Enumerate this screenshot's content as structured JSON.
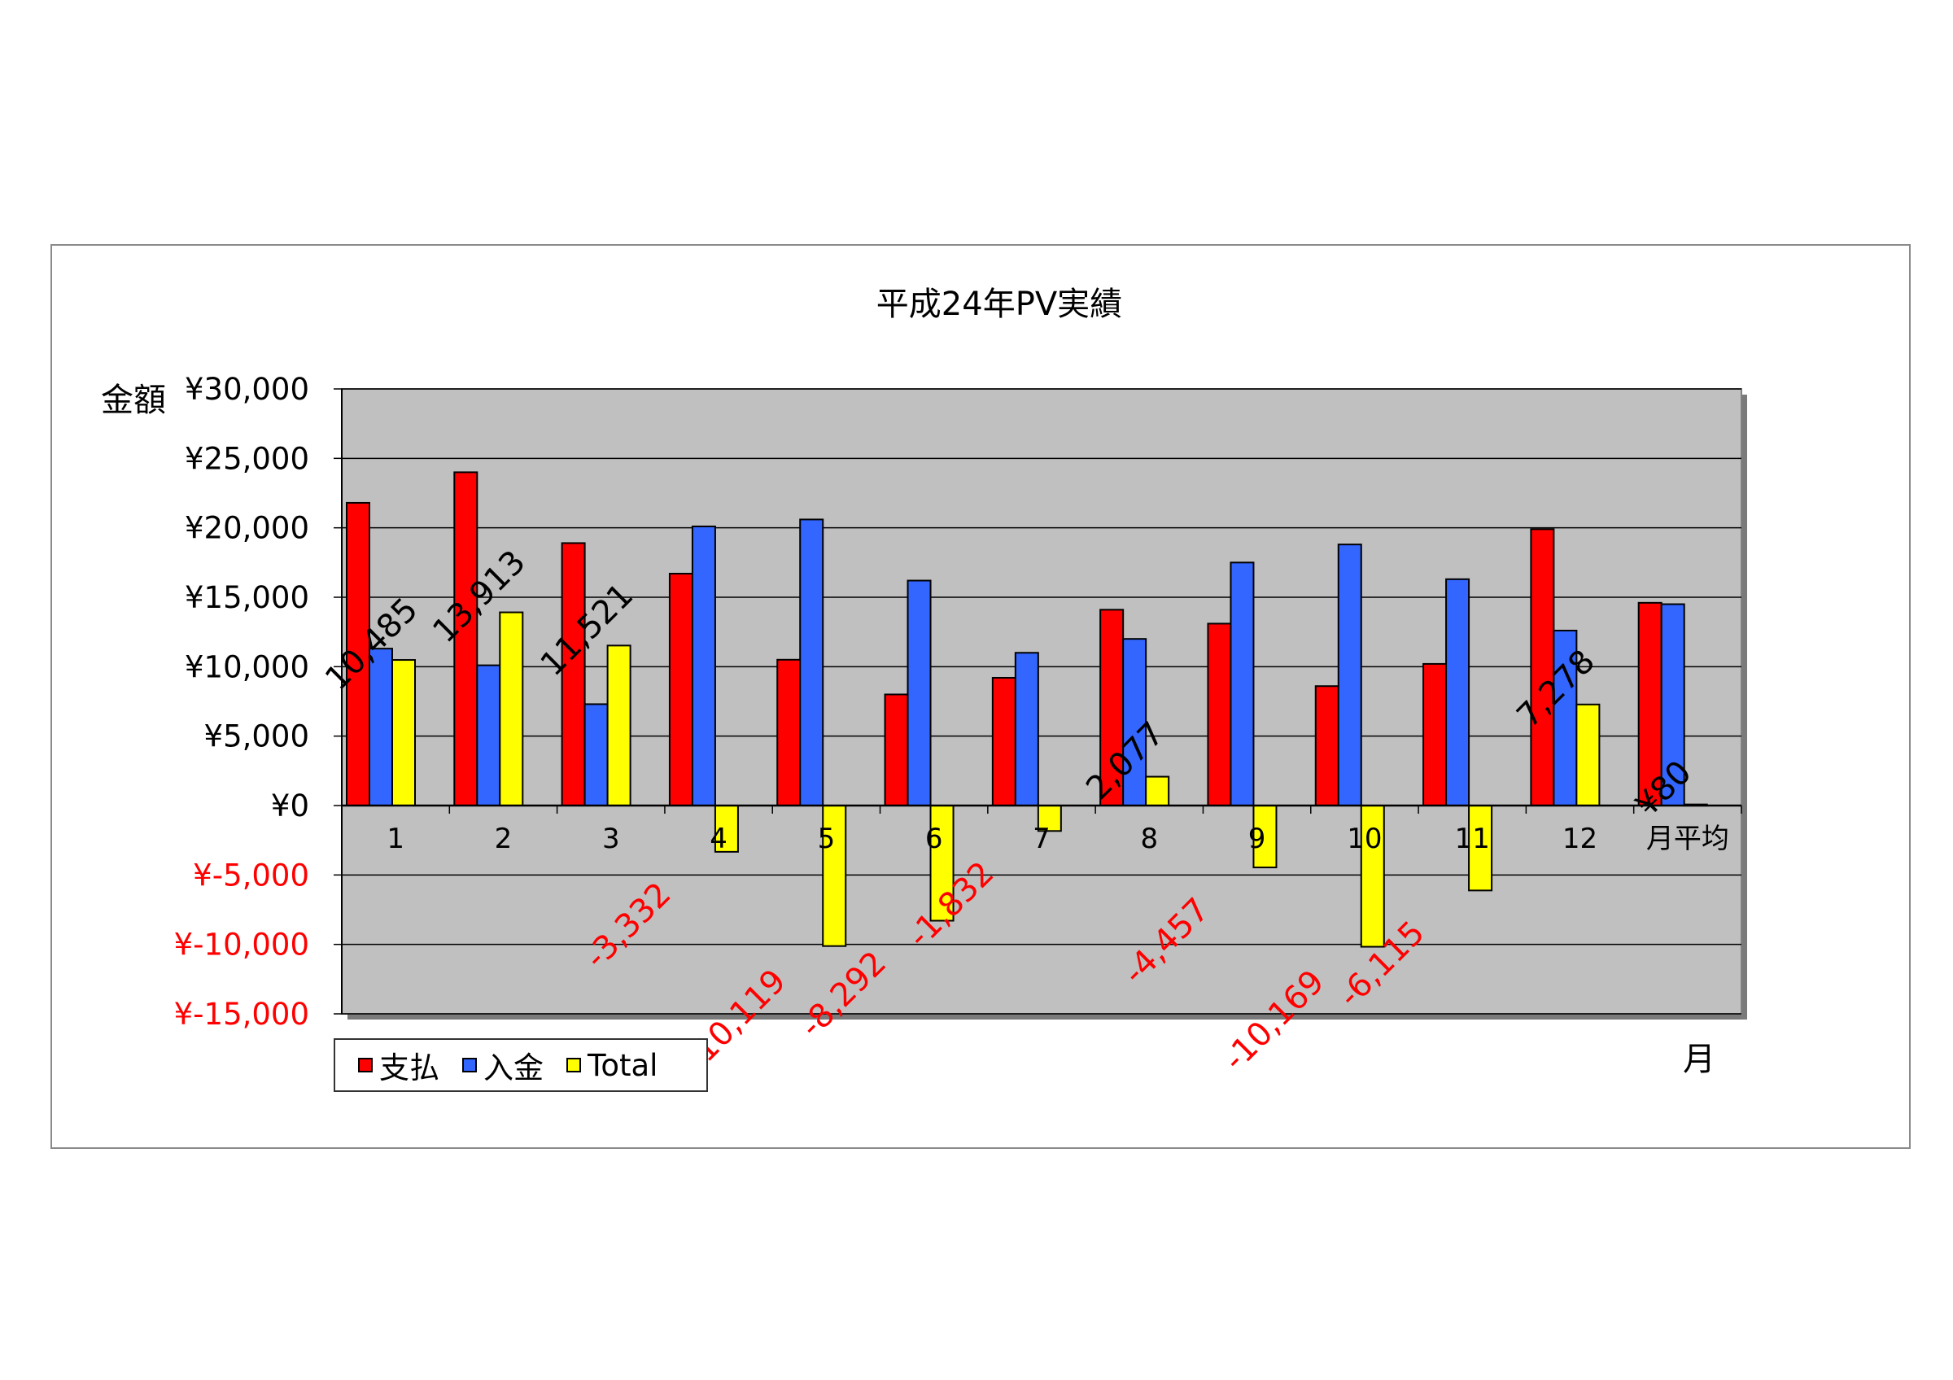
{
  "chart_data": {
    "type": "bar",
    "title": "平成24年PV実績",
    "ylabel": "金額",
    "xlabel": "月",
    "categories": [
      "1",
      "2",
      "3",
      "4",
      "5",
      "6",
      "7",
      "8",
      "9",
      "10",
      "11",
      "12",
      "月平均"
    ],
    "ylim": [
      -15000,
      30000
    ],
    "yticks": [
      30000,
      25000,
      20000,
      15000,
      10000,
      5000,
      0,
      -5000,
      -10000,
      -15000
    ],
    "ytick_labels": [
      "¥30,000",
      "¥25,000",
      "¥20,000",
      "¥15,000",
      "¥10,000",
      "¥5,000",
      "¥0",
      "¥-5,000",
      "¥-10,000",
      "¥-15,000"
    ],
    "grid": true,
    "legend_position": "bottom-left",
    "series": [
      {
        "name": "支払",
        "color": "#ff0000",
        "values": [
          21800,
          24000,
          18900,
          16700,
          10500,
          8000,
          9200,
          14100,
          13100,
          8600,
          10200,
          19900,
          14600
        ]
      },
      {
        "name": "入金",
        "color": "#3366ff",
        "values": [
          11300,
          10100,
          7300,
          20100,
          20600,
          16200,
          11000,
          12000,
          17500,
          18800,
          16300,
          12600,
          14500
        ]
      },
      {
        "name": "Total",
        "color": "#ffff00",
        "values": [
          10485,
          13913,
          11521,
          -3332,
          -10119,
          -8292,
          -1832,
          2077,
          -4457,
          -10169,
          -6115,
          7278,
          80
        ]
      }
    ],
    "data_labels": [
      "10,485",
      "13,913",
      "11,521",
      "-3,332",
      "-10,119",
      "-8,292",
      "-1,832",
      "2,077",
      "-4,457",
      "-10,169",
      "-6,115",
      "7,278",
      "¥80"
    ],
    "colors": {
      "plot_bg": "#c0c0c0",
      "negative_text": "#ff0000",
      "text": "#000000"
    }
  }
}
